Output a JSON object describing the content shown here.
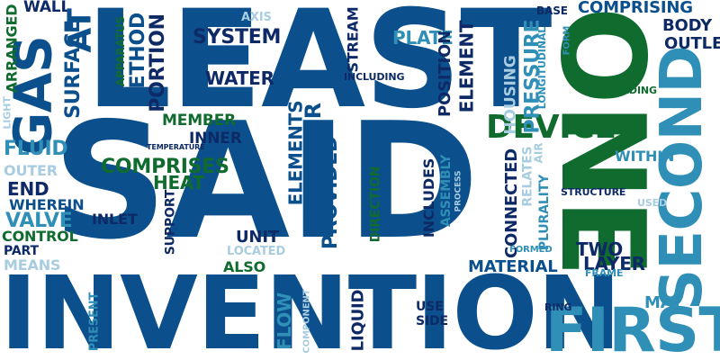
{
  "palette": {
    "dark_blue": "#0b4f8c",
    "navy": "#0e2a66",
    "green": "#0f6b2e",
    "teal": "#2f8fb7",
    "light_blue": "#a8cde0"
  },
  "words": [
    {
      "text": "LEAST",
      "color": "dark_blue"
    },
    {
      "text": "SAID",
      "color": "dark_blue"
    },
    {
      "text": "INVENTION",
      "color": "dark_blue"
    },
    {
      "text": "ONE",
      "color": "green"
    },
    {
      "text": "SECOND",
      "color": "teal"
    },
    {
      "text": "FIRST",
      "color": "teal"
    },
    {
      "text": "GAS",
      "color": "dark_blue"
    },
    {
      "text": "DEVICE",
      "color": "green"
    },
    {
      "text": "WALL",
      "color": "navy"
    },
    {
      "text": "AT",
      "color": "dark_blue"
    },
    {
      "text": "ARRANGED",
      "color": "green"
    },
    {
      "text": "SURFACE",
      "color": "dark_blue"
    },
    {
      "text": "LIGHT",
      "color": "light_blue"
    },
    {
      "text": "APPARATUS",
      "color": "green"
    },
    {
      "text": "METHOD",
      "color": "dark_blue"
    },
    {
      "text": "PORTION",
      "color": "navy"
    },
    {
      "text": "SYSTEM",
      "color": "navy"
    },
    {
      "text": "AXIS",
      "color": "light_blue"
    },
    {
      "text": "STREAM",
      "color": "navy"
    },
    {
      "text": "PLATE",
      "color": "teal"
    },
    {
      "text": "BASE",
      "color": "navy"
    },
    {
      "text": "COMPRISING",
      "color": "dark_blue"
    },
    {
      "text": "BODY",
      "color": "navy"
    },
    {
      "text": "OUTLET",
      "color": "navy"
    },
    {
      "text": "FORM",
      "color": "teal"
    },
    {
      "text": "LONGITUDINAL",
      "color": "teal"
    },
    {
      "text": "WATER",
      "color": "navy"
    },
    {
      "text": "INCLUDING",
      "color": "navy"
    },
    {
      "text": "POSITION",
      "color": "navy"
    },
    {
      "text": "ELEMENT",
      "color": "navy"
    },
    {
      "text": "PRESSURE",
      "color": "teal"
    },
    {
      "text": "HOUSING",
      "color": "light_blue"
    },
    {
      "text": "ACCORDING",
      "color": "green"
    },
    {
      "text": "MEMBER",
      "color": "green"
    },
    {
      "text": "INNER",
      "color": "navy"
    },
    {
      "text": "TEMPERATURE",
      "color": "navy"
    },
    {
      "text": "FLUID",
      "color": "teal"
    },
    {
      "text": "OUTER",
      "color": "light_blue"
    },
    {
      "text": "END",
      "color": "navy"
    },
    {
      "text": "WHEREIN",
      "color": "dark_blue"
    },
    {
      "text": "VALVE",
      "color": "teal"
    },
    {
      "text": "CONTROL",
      "color": "green"
    },
    {
      "text": "PART",
      "color": "navy"
    },
    {
      "text": "MEANS",
      "color": "light_blue"
    },
    {
      "text": "COMPRISES",
      "color": "green"
    },
    {
      "text": "HEAT",
      "color": "green"
    },
    {
      "text": "ELEMENTS",
      "color": "dark_blue"
    },
    {
      "text": "CHAMBER",
      "color": "dark_blue"
    },
    {
      "text": "PROVIDED",
      "color": "dark_blue"
    },
    {
      "text": "INCLUDES",
      "color": "navy"
    },
    {
      "text": "ASSEMBLY",
      "color": "teal"
    },
    {
      "text": "PROCESS",
      "color": "light_blue"
    },
    {
      "text": "CONNECTED",
      "color": "navy"
    },
    {
      "text": "RELATES",
      "color": "light_blue"
    },
    {
      "text": "AIR",
      "color": "light_blue"
    },
    {
      "text": "PLURALITY",
      "color": "teal"
    },
    {
      "text": "WITHIN",
      "color": "teal"
    },
    {
      "text": "STRUCTURE",
      "color": "navy"
    },
    {
      "text": "USED",
      "color": "light_blue"
    },
    {
      "text": "INLET",
      "color": "navy"
    },
    {
      "text": "SUPPORT",
      "color": "navy"
    },
    {
      "text": "DIRECTION",
      "color": "green"
    },
    {
      "text": "UNIT",
      "color": "navy"
    },
    {
      "text": "LOCATED",
      "color": "light_blue"
    },
    {
      "text": "ALSO",
      "color": "green"
    },
    {
      "text": "MATERIAL",
      "color": "dark_blue"
    },
    {
      "text": "FORMED",
      "color": "teal"
    },
    {
      "text": "TWO",
      "color": "navy"
    },
    {
      "text": "LAYER",
      "color": "navy"
    },
    {
      "text": "FRAME",
      "color": "teal"
    },
    {
      "text": "RING",
      "color": "navy"
    },
    {
      "text": "MAY",
      "color": "teal"
    },
    {
      "text": "USE",
      "color": "navy"
    },
    {
      "text": "SIDE",
      "color": "navy"
    },
    {
      "text": "LIQUID",
      "color": "navy"
    },
    {
      "text": "FLOW",
      "color": "teal"
    },
    {
      "text": "COMPONENT",
      "color": "light_blue"
    },
    {
      "text": "PRESENT",
      "color": "teal"
    }
  ]
}
